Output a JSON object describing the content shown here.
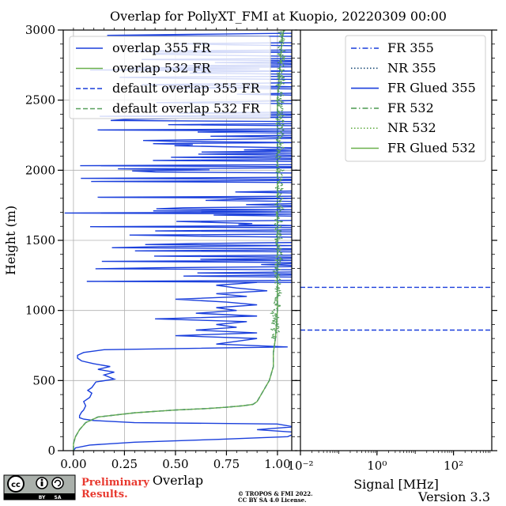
{
  "chart_data": {
    "title": "Overlap for PollyXT_FMI at Kuopio, 20220309 00:00",
    "ylabel": "Height (m)",
    "panels": [
      {
        "type": "line",
        "xlabel": "Overlap",
        "xlim": [
          -0.05,
          1.07
        ],
        "ylim": [
          0,
          3000
        ],
        "grid": true,
        "legend_placement": "upper-left",
        "xticks": [
          0,
          0.25,
          0.5,
          0.75,
          1.0
        ],
        "xtick_labels": [
          "0.00",
          "0.25",
          "0.50",
          "0.75",
          "1.00"
        ],
        "yticks": [
          0,
          500,
          1000,
          1500,
          2000,
          2500,
          3000
        ],
        "ytick_labels": [
          "0",
          "500",
          "1000",
          "1500",
          "2000",
          "2500",
          "3000"
        ],
        "series": [
          {
            "name": "overlap 355 FR",
            "color": "#1a3fdc",
            "style": "solid",
            "height": [
              0,
              20,
              40,
              60,
              80,
              100,
              130,
              150,
              170,
              190,
              200,
              215,
              225,
              235,
              250,
              275,
              290,
              320,
              350,
              380,
              410,
              430,
              450,
              470,
              490,
              510,
              540,
              560,
              580,
              600,
              620,
              640,
              660,
              680,
              700,
              720,
              740,
              760,
              780,
              800,
              820,
              840,
              860,
              880,
              900,
              920,
              940,
              960,
              980,
              1000,
              1020,
              1040,
              1060,
              1080,
              1100,
              1120,
              1140,
              1160,
              1180,
              1200
            ],
            "values": [
              0.0,
              0.01,
              0.08,
              0.3,
              0.7,
              1.05,
              1.1,
              0.9,
              1.08,
              1.0,
              0.3,
              0.1,
              0.05,
              0.03,
              0.03,
              0.04,
              0.05,
              0.06,
              0.05,
              0.08,
              0.09,
              0.07,
              0.09,
              0.1,
              0.11,
              0.2,
              0.15,
              0.2,
              0.12,
              0.18,
              0.1,
              0.04,
              0.02,
              0.02,
              0.05,
              0.15,
              1.05,
              0.7,
              0.8,
              0.9,
              0.5,
              0.9,
              0.6,
              0.8,
              0.7,
              0.85,
              0.4,
              0.9,
              0.6,
              0.8,
              0.7,
              0.9,
              0.75,
              0.5,
              0.85,
              0.7,
              0.95,
              0.8,
              0.7,
              0.9
            ]
          },
          {
            "name": "overlap 532 FR",
            "color": "#6ab04c",
            "style": "solid",
            "height": [
              0,
              50,
              100,
              150,
              200,
              240,
              270,
              290,
              300,
              310,
              320,
              330,
              350,
              400,
              450,
              500,
              550,
              600,
              700,
              800,
              1000,
              1500,
              2000,
              2500,
              2900,
              3000
            ],
            "values": [
              0.0,
              0.0,
              0.01,
              0.03,
              0.06,
              0.12,
              0.3,
              0.5,
              0.65,
              0.75,
              0.83,
              0.88,
              0.9,
              0.92,
              0.94,
              0.96,
              0.97,
              0.98,
              0.98,
              0.99,
              1.0,
              1.0,
              1.0,
              1.0,
              1.02,
              1.03
            ]
          },
          {
            "name": "default overlap 355 FR",
            "color": "#1a3fdc",
            "style": "dashed",
            "height": [
              0,
              50,
              100,
              150,
              200,
              240,
              270,
              290,
              300,
              310,
              320,
              330,
              350,
              400,
              450,
              500,
              550,
              600,
              700,
              800,
              1000,
              1500,
              2000,
              2500,
              2900,
              3000
            ],
            "values": [
              0.0,
              0.0,
              0.01,
              0.03,
              0.06,
              0.12,
              0.3,
              0.5,
              0.65,
              0.75,
              0.83,
              0.88,
              0.9,
              0.92,
              0.94,
              0.96,
              0.97,
              0.98,
              0.98,
              0.99,
              1.0,
              1.0,
              1.0,
              1.0,
              1.02,
              1.03
            ]
          },
          {
            "name": "default overlap 532 FR",
            "color": "#58a05c",
            "style": "dashed",
            "height": [
              0,
              50,
              100,
              150,
              200,
              240,
              270,
              290,
              300,
              310,
              320,
              330,
              350,
              400,
              450,
              500,
              550,
              600,
              700,
              800,
              1000,
              1500,
              2000,
              2500,
              2900,
              3000
            ],
            "values": [
              0.0,
              0.0,
              0.01,
              0.03,
              0.06,
              0.12,
              0.3,
              0.5,
              0.65,
              0.75,
              0.83,
              0.88,
              0.9,
              0.92,
              0.94,
              0.96,
              0.97,
              0.98,
              0.98,
              0.99,
              1.0,
              1.0,
              1.0,
              1.0,
              1.02,
              1.03
            ]
          }
        ]
      },
      {
        "type": "line",
        "xlabel": "Signal [MHz]",
        "xscale": "log",
        "xlim": [
          0.01,
          1000
        ],
        "ylim": [
          0,
          3000
        ],
        "grid": false,
        "legend_placement": "upper-right",
        "xticks": [
          0.01,
          1,
          100
        ],
        "xtick_labels": [
          "10⁻²",
          "10⁰",
          "10²"
        ],
        "series": [
          {
            "name": "FR 355",
            "color": "#1a3fdc",
            "style": "dashdot"
          },
          {
            "name": "NR 355",
            "color": "#1f4e79",
            "style": "dotted"
          },
          {
            "name": "FR Glued 355",
            "color": "#1a3fdc",
            "style": "solid"
          },
          {
            "name": "FR 532",
            "color": "#58a05c",
            "style": "dashdot"
          },
          {
            "name": "NR 532",
            "color": "#6ab04c",
            "style": "dotted"
          },
          {
            "name": "FR Glued 532",
            "color": "#6ab04c",
            "style": "solid"
          }
        ],
        "hlines": [
          {
            "height": 860,
            "color": "#1a3fdc",
            "style": "dashed"
          },
          {
            "height": 1165,
            "color": "#1a3fdc",
            "style": "dashed"
          }
        ]
      }
    ]
  },
  "footer": {
    "cc_label": "cc",
    "cc_by": "BY",
    "cc_sa": "SA",
    "preliminary_line1": "Preliminary",
    "preliminary_line2": "Results.",
    "credit_line1": "© TROPOS & FMI 2022.",
    "credit_line2": "CC BY SA 4.0 License.",
    "version": "Version 3.3"
  }
}
